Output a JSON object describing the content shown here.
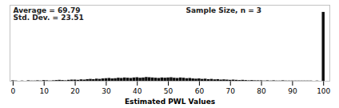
{
  "chart_data": {
    "type": "bar",
    "xlabel": "Estimated PWL Values",
    "annotations": [
      "Average = 69.79\nStd. Dev. = 23.51",
      "Sample Size, n = 3"
    ],
    "x": [
      0,
      1,
      2,
      3,
      4,
      5,
      6,
      7,
      8,
      9,
      10,
      11,
      12,
      13,
      14,
      15,
      16,
      17,
      18,
      19,
      20,
      21,
      22,
      23,
      24,
      25,
      26,
      27,
      28,
      29,
      30,
      31,
      32,
      33,
      34,
      35,
      36,
      37,
      38,
      39,
      40,
      41,
      42,
      43,
      44,
      45,
      46,
      47,
      48,
      49,
      50,
      51,
      52,
      53,
      54,
      55,
      56,
      57,
      58,
      59,
      60,
      61,
      62,
      63,
      64,
      65,
      66,
      67,
      68,
      69,
      70,
      71,
      72,
      73,
      74,
      75,
      76,
      77,
      78,
      79,
      80,
      81,
      82,
      83,
      84,
      85,
      86,
      87,
      88,
      89,
      90,
      91,
      92,
      93,
      94,
      95,
      96,
      97,
      98,
      99,
      100
    ],
    "values": [
      2,
      1,
      0,
      1,
      0,
      2,
      1,
      1,
      2,
      1,
      3,
      2,
      1,
      2,
      3,
      4,
      3,
      2,
      4,
      5,
      5,
      4,
      6,
      5,
      7,
      8,
      7,
      9,
      8,
      10,
      11,
      12,
      10,
      11,
      13,
      12,
      14,
      13,
      12,
      14,
      15,
      13,
      14,
      16,
      15,
      14,
      13,
      12,
      14,
      13,
      14,
      15,
      13,
      12,
      14,
      13,
      11,
      12,
      10,
      9,
      10,
      8,
      9,
      7,
      8,
      6,
      7,
      5,
      6,
      5,
      4,
      5,
      4,
      3,
      4,
      3,
      2,
      3,
      2,
      2,
      2,
      1,
      2,
      1,
      2,
      1,
      1,
      2,
      1,
      1,
      1,
      1,
      1,
      1,
      1,
      1,
      1,
      0,
      1,
      0,
      290
    ],
    "color": "#111111",
    "xlim": [
      -1,
      102
    ],
    "xticks": [
      0,
      10,
      20,
      30,
      40,
      50,
      60,
      70,
      80,
      90,
      100
    ],
    "ylim": [
      0,
      320
    ],
    "tick_labels": "x",
    "grid": false
  }
}
